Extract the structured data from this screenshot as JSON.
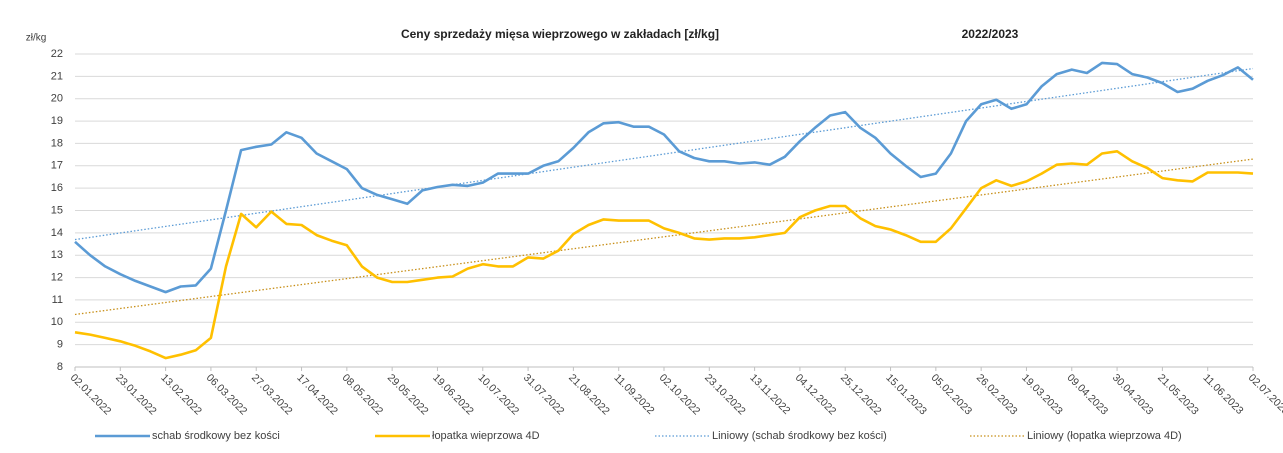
{
  "chart_data": {
    "type": "line",
    "title": "Ceny sprzedaży mięsa wieprzowego w zakładach [zł/kg]",
    "subtitle": "2022/2023",
    "y_label": "zł/kg",
    "categories": [
      "02.01.2022",
      null,
      null,
      "23.01.2022",
      null,
      null,
      "13.02.2022",
      null,
      null,
      "06.03.2022",
      null,
      null,
      "27.03.2022",
      null,
      null,
      "17.04.2022",
      null,
      null,
      "08.05.2022",
      null,
      null,
      "29.05.2022",
      null,
      null,
      "19.06.2022",
      null,
      null,
      "10.07.2022",
      null,
      null,
      "31.07.2022",
      null,
      null,
      "21.08.2022",
      null,
      null,
      "11.09.2022",
      null,
      null,
      "02.10.2022",
      null,
      null,
      "23.10.2022",
      null,
      null,
      "13.11.2022",
      null,
      null,
      "04.12.2022",
      null,
      null,
      "25.12.2022",
      null,
      null,
      "15.01.2023",
      null,
      null,
      "05.02.2023",
      null,
      null,
      "26.02.2023",
      null,
      null,
      "19.03.2023",
      null,
      null,
      "09.04.2023",
      null,
      null,
      "30.04.2023",
      null,
      null,
      "21.05.2023",
      null,
      null,
      "11.06.2023",
      null,
      null,
      "02.07.2023"
    ],
    "series": [
      {
        "name": "schab środkowy bez kości",
        "color": "#5b9bd5",
        "values": [
          13.6,
          13.0,
          12.5,
          12.15,
          11.85,
          11.6,
          11.35,
          11.6,
          11.65,
          12.4,
          15.0,
          17.7,
          17.85,
          17.95,
          18.5,
          18.25,
          17.55,
          17.2,
          16.85,
          16.0,
          15.7,
          15.5,
          15.3,
          15.9,
          16.05,
          16.15,
          16.1,
          16.25,
          16.65,
          16.65,
          16.65,
          17.0,
          17.2,
          17.8,
          18.5,
          18.9,
          18.95,
          18.75,
          18.75,
          18.4,
          17.65,
          17.35,
          17.2,
          17.2,
          17.1,
          17.15,
          17.05,
          17.4,
          18.1,
          18.7,
          19.25,
          19.4,
          18.7,
          18.25,
          17.55,
          17.0,
          16.5,
          16.65,
          17.55,
          19.0,
          19.75,
          19.95,
          19.55,
          19.75,
          20.55,
          21.1,
          21.3,
          21.15,
          21.6,
          21.55,
          21.1,
          20.95,
          20.7,
          20.3,
          20.45,
          20.8,
          21.05,
          21.4,
          20.85
        ]
      },
      {
        "name": "łopatka wieprzowa 4D",
        "color": "#ffc000",
        "values": [
          9.55,
          9.45,
          9.3,
          9.15,
          8.95,
          8.7,
          8.4,
          8.55,
          8.75,
          9.3,
          12.5,
          14.85,
          14.25,
          14.95,
          14.4,
          14.35,
          13.9,
          13.65,
          13.45,
          12.5,
          12.0,
          11.8,
          11.8,
          11.9,
          12.0,
          12.05,
          12.4,
          12.6,
          12.5,
          12.5,
          12.9,
          12.85,
          13.2,
          13.95,
          14.35,
          14.6,
          14.55,
          14.55,
          14.55,
          14.2,
          14.0,
          13.75,
          13.7,
          13.75,
          13.75,
          13.8,
          13.9,
          14.0,
          14.7,
          15.0,
          15.2,
          15.2,
          14.65,
          14.3,
          14.15,
          13.9,
          13.6,
          13.6,
          14.2,
          15.1,
          16.0,
          16.35,
          16.1,
          16.3,
          16.65,
          17.05,
          17.1,
          17.05,
          17.55,
          17.65,
          17.2,
          16.9,
          16.45,
          16.35,
          16.3,
          16.7,
          16.7,
          16.7,
          16.65
        ]
      }
    ],
    "trendlines": [
      {
        "name": "Liniowy (schab środkowy bez kości)",
        "color": "#5b9bd5",
        "from": 13.7,
        "to": 21.35
      },
      {
        "name": "Liniowy (łopatka wieprzowa 4D)",
        "color": "#c8901a",
        "from": 10.35,
        "to": 17.3
      }
    ],
    "ylim": [
      8,
      22
    ],
    "yticks": [
      8,
      9,
      10,
      11,
      12,
      13,
      14,
      15,
      16,
      17,
      18,
      19,
      20,
      21,
      22
    ],
    "grid": true,
    "legend": "bottom"
  }
}
